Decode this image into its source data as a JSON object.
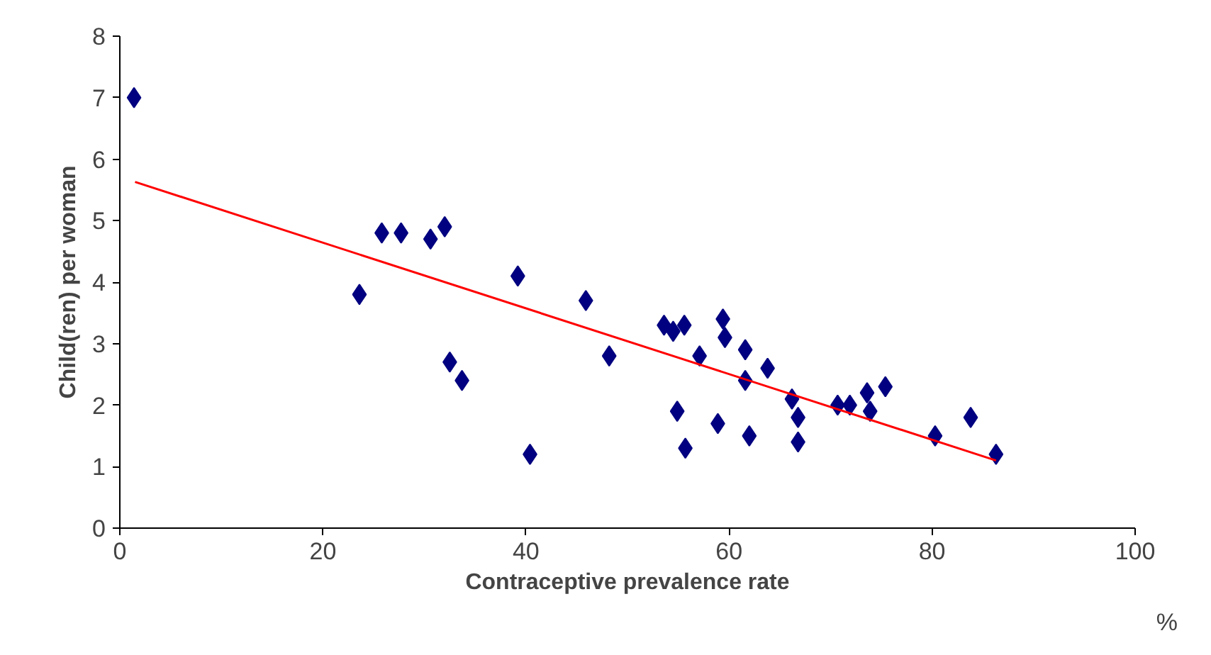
{
  "chart_data": {
    "type": "scatter",
    "xlabel": "Contraceptive prevalence rate",
    "ylabel": "Child(ren) per woman",
    "annotations": [
      "%"
    ],
    "xlim": [
      0,
      100
    ],
    "ylim": [
      0,
      8
    ],
    "xticks": [
      0,
      20,
      40,
      60,
      80,
      100
    ],
    "yticks": [
      0,
      1,
      2,
      3,
      4,
      5,
      6,
      7,
      8
    ],
    "grid": false,
    "marker": "diamond",
    "series": [
      {
        "type": "scatter",
        "color": "#000080",
        "x": [
          1.4,
          23.6,
          25.8,
          27.7,
          30.6,
          32.0,
          32.5,
          33.7,
          39.2,
          40.4,
          45.9,
          48.2,
          53.6,
          54.5,
          55.6,
          54.9,
          55.7,
          57.1,
          59.4,
          59.6,
          58.9,
          61.6,
          61.6,
          62.0,
          63.8,
          66.2,
          66.8,
          66.8,
          70.7,
          71.9,
          73.6,
          73.9,
          75.4,
          80.3,
          83.8,
          86.3
        ],
        "values": [
          7.0,
          3.8,
          4.8,
          4.8,
          4.7,
          4.9,
          2.7,
          2.4,
          4.1,
          1.2,
          3.7,
          2.8,
          3.3,
          3.2,
          3.3,
          1.9,
          1.3,
          2.8,
          3.4,
          3.1,
          1.7,
          2.9,
          2.4,
          1.5,
          2.6,
          2.1,
          1.8,
          1.4,
          2.0,
          2.0,
          2.2,
          1.9,
          2.3,
          1.5,
          1.8,
          1.2
        ]
      },
      {
        "type": "line",
        "color": "#ff0000",
        "marker": "none",
        "x": [
          1.5,
          86.3
        ],
        "values": [
          5.63,
          1.1
        ]
      }
    ]
  }
}
